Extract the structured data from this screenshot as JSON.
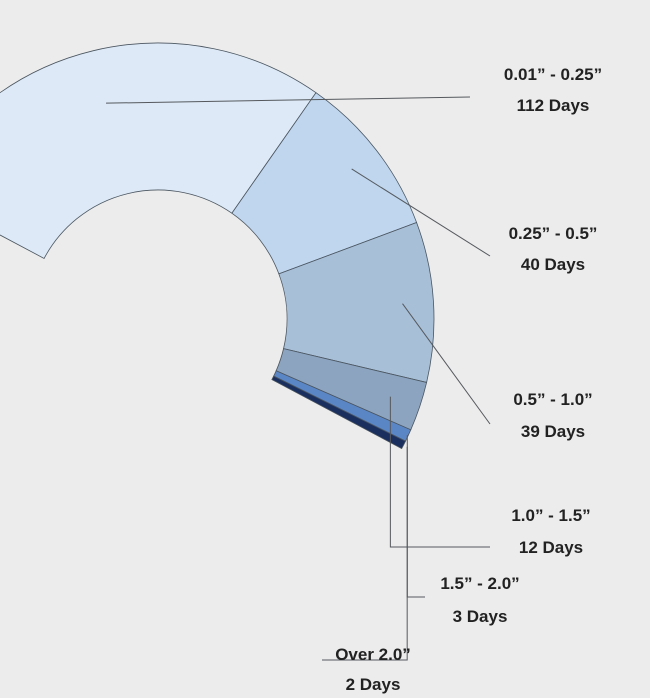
{
  "chart_data": {
    "type": "pie",
    "style": "half-donut",
    "title": "",
    "categories": [
      "0.01” - 0.25”",
      "0.25” - 0.5”",
      "0.5” - 1.0”",
      "1.0” - 1.5”",
      "1.5” - 2.0”",
      "Over 2.0”"
    ],
    "values": [
      112,
      40,
      39,
      12,
      3,
      2
    ],
    "value_labels": [
      "112 Days",
      "40 Days",
      "39 Days",
      "12 Days",
      "3 Days",
      "2 Days"
    ],
    "colors": [
      "#dde9f6",
      "#bfd6ee",
      "#a8bfd8",
      "#8ca4bf",
      "#5b86c6",
      "#1b2f5e"
    ],
    "legend": "none"
  }
}
